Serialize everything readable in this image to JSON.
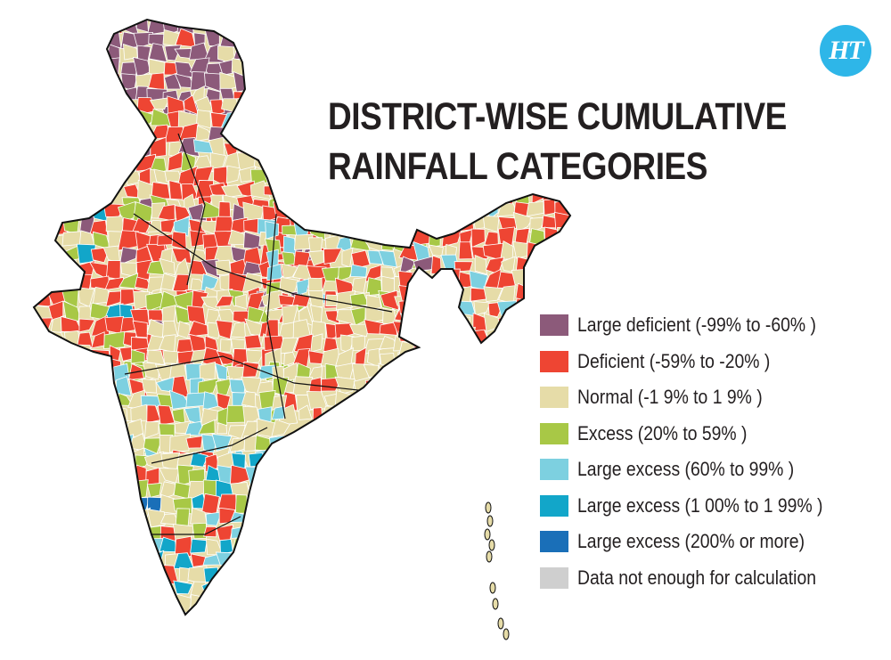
{
  "title": {
    "line1": "DISTRICT-WISE CUMULATIVE",
    "line2": "RAINFALL CATEGORIES"
  },
  "logo": {
    "text": "HT",
    "color": "#2eb6e8"
  },
  "legend": [
    {
      "label": "Large deficient (-99% to -60% )",
      "color": "#8c5a7a"
    },
    {
      "label": "Deficient (-59% to -20% )",
      "color": "#ee4533"
    },
    {
      "label": "Normal (-1 9% to 1 9% )",
      "color": "#e6dca8"
    },
    {
      "label": "Excess (20% to 59% )",
      "color": "#a8c846"
    },
    {
      "label": "Large excess (60% to 99% )",
      "color": "#7dd0e0"
    },
    {
      "label": "Large excess (1 00% to 1 99% )",
      "color": "#12a6c9"
    },
    {
      "label": "Large excess (200% or more)",
      "color": "#1a6fb8"
    },
    {
      "label": "Data not enough for calculation",
      "color": "#cfcfcf"
    }
  ],
  "map": {
    "region": "India",
    "border_color": "#111111",
    "district_line_color": "#ffffff"
  }
}
